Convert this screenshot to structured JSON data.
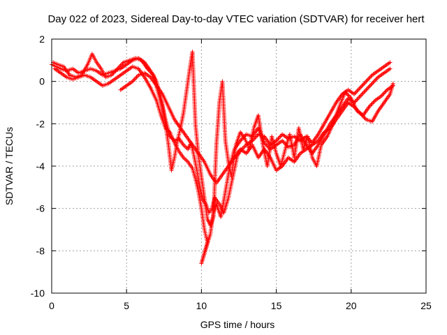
{
  "chart_data": {
    "type": "scatter",
    "title": "Day 022 of 2023, Sidereal Day-to-day VTEC variation (SDTVAR) for receiver hert",
    "xlabel": "GPS time / hours",
    "ylabel": "SDTVAR / TECUs",
    "xlim": [
      0,
      25
    ],
    "ylim": [
      -10,
      2
    ],
    "xticks": [
      0,
      5,
      10,
      15,
      20,
      25
    ],
    "yticks": [
      -10,
      -8,
      -6,
      -4,
      -2,
      0,
      2
    ],
    "xtick_labels": [
      "0",
      "5",
      "10",
      "15",
      "20",
      "25"
    ],
    "ytick_labels": [
      "-10",
      "-8",
      "-6",
      "-4",
      "-2",
      "0",
      "2"
    ],
    "grid": true,
    "marker": "+",
    "color": "#ff0000",
    "series": [
      {
        "points": [
          [
            0.0,
            0.8
          ],
          [
            0.3,
            0.7
          ],
          [
            0.6,
            0.6
          ],
          [
            1.0,
            0.5
          ],
          [
            1.4,
            0.6
          ],
          [
            1.8,
            0.4
          ],
          [
            2.2,
            0.5
          ],
          [
            2.6,
            0.6
          ],
          [
            3.0,
            0.5
          ],
          [
            3.4,
            0.3
          ],
          [
            3.8,
            0.4
          ],
          [
            4.2,
            0.5
          ],
          [
            4.6,
            0.6
          ],
          [
            5.0,
            0.8
          ],
          [
            5.4,
            1.0
          ],
          [
            5.8,
            1.1
          ],
          [
            6.2,
            0.9
          ],
          [
            6.6,
            0.5
          ],
          [
            7.0,
            0.0
          ],
          [
            7.3,
            -0.8
          ],
          [
            7.6,
            -1.8
          ],
          [
            7.9,
            -2.6
          ],
          [
            8.2,
            -2.8
          ],
          [
            8.5,
            -2.7
          ],
          [
            8.8,
            -3.0
          ],
          [
            9.1,
            -3.2
          ],
          [
            9.3,
            -2.9
          ],
          [
            9.5,
            -3.5
          ],
          [
            9.7,
            -4.2
          ],
          [
            9.9,
            -5.0
          ],
          [
            10.1,
            -5.6
          ],
          [
            10.3,
            -5.8
          ],
          [
            10.5,
            -6.2
          ],
          [
            10.7,
            -6.0
          ],
          [
            10.9,
            -5.5
          ],
          [
            11.2,
            -5.8
          ],
          [
            11.5,
            -6.2
          ],
          [
            11.8,
            -5.5
          ],
          [
            12.1,
            -4.5
          ],
          [
            12.4,
            -3.5
          ],
          [
            12.7,
            -3.2
          ],
          [
            13.0,
            -3.0
          ],
          [
            13.4,
            -2.8
          ],
          [
            13.8,
            -2.5
          ],
          [
            14.2,
            -2.6
          ],
          [
            14.6,
            -3.0
          ],
          [
            15.0,
            -2.8
          ],
          [
            15.4,
            -2.5
          ],
          [
            15.8,
            -2.7
          ],
          [
            16.2,
            -2.6
          ],
          [
            16.6,
            -2.8
          ],
          [
            17.0,
            -2.6
          ],
          [
            17.4,
            -2.9
          ],
          [
            17.8,
            -2.5
          ],
          [
            18.2,
            -2.0
          ],
          [
            18.6,
            -1.5
          ],
          [
            19.0,
            -1.0
          ],
          [
            19.4,
            -0.6
          ],
          [
            19.8,
            -0.4
          ],
          [
            20.2,
            -0.6
          ],
          [
            20.6,
            -0.3
          ],
          [
            21.0,
            0.0
          ],
          [
            21.4,
            0.3
          ],
          [
            21.8,
            0.5
          ],
          [
            22.2,
            0.7
          ],
          [
            22.6,
            0.9
          ]
        ]
      },
      {
        "points": [
          [
            0.1,
            0.9
          ],
          [
            0.4,
            0.8
          ],
          [
            0.8,
            0.7
          ],
          [
            1.2,
            0.3
          ],
          [
            1.6,
            0.2
          ],
          [
            2.0,
            0.3
          ],
          [
            2.4,
            0.8
          ],
          [
            2.7,
            1.3
          ],
          [
            3.0,
            0.9
          ],
          [
            3.3,
            0.6
          ],
          [
            3.6,
            0.2
          ],
          [
            4.0,
            0.3
          ],
          [
            4.4,
            0.6
          ],
          [
            4.8,
            0.9
          ],
          [
            5.2,
            1.0
          ],
          [
            5.6,
            1.1
          ],
          [
            6.0,
            1.0
          ],
          [
            6.4,
            0.6
          ],
          [
            6.8,
            0.3
          ],
          [
            7.1,
            -0.5
          ],
          [
            7.4,
            -1.2
          ],
          [
            7.6,
            -2.0
          ],
          [
            7.8,
            -3.0
          ],
          [
            8.0,
            -4.2
          ],
          [
            8.2,
            -3.6
          ],
          [
            8.4,
            -2.8
          ],
          [
            8.6,
            -2.2
          ],
          [
            8.8,
            -1.5
          ],
          [
            9.0,
            -0.5
          ],
          [
            9.2,
            0.5
          ],
          [
            9.4,
            1.4
          ],
          [
            9.6,
            -2.0
          ],
          [
            9.8,
            -3.5
          ],
          [
            10.0,
            -4.5
          ],
          [
            10.2,
            -5.5
          ],
          [
            10.4,
            -6.5
          ],
          [
            10.6,
            -6.8
          ],
          [
            10.8,
            -6.4
          ],
          [
            11.0,
            -3.0
          ],
          [
            11.2,
            -1.0
          ],
          [
            11.4,
            0.0
          ],
          [
            11.6,
            -2.8
          ],
          [
            11.8,
            -3.8
          ],
          [
            12.0,
            -4.5
          ],
          [
            12.3,
            -3.0
          ],
          [
            12.6,
            -2.4
          ],
          [
            12.9,
            -2.7
          ],
          [
            13.2,
            -3.2
          ],
          [
            13.5,
            -2.2
          ],
          [
            13.8,
            -1.6
          ],
          [
            14.1,
            -3.0
          ],
          [
            14.4,
            -4.0
          ],
          [
            14.7,
            -2.6
          ],
          [
            15.0,
            -3.4
          ],
          [
            15.3,
            -4.0
          ],
          [
            15.6,
            -3.2
          ],
          [
            15.9,
            -2.5
          ],
          [
            16.2,
            -3.6
          ],
          [
            16.5,
            -2.2
          ],
          [
            16.8,
            -3.2
          ],
          [
            17.1,
            -2.6
          ],
          [
            17.4,
            -3.6
          ],
          [
            17.7,
            -4.0
          ],
          [
            18.0,
            -3.0
          ],
          [
            18.4,
            -2.6
          ],
          [
            18.8,
            -2.0
          ],
          [
            19.2,
            -1.2
          ],
          [
            19.6,
            -0.5
          ],
          [
            20.0,
            -0.8
          ],
          [
            20.4,
            -1.4
          ],
          [
            20.8,
            -1.6
          ],
          [
            21.2,
            -1.2
          ],
          [
            21.6,
            -0.9
          ],
          [
            22.0,
            -0.7
          ],
          [
            22.4,
            -0.4
          ],
          [
            22.8,
            -0.2
          ]
        ]
      },
      {
        "points": [
          [
            0.2,
            0.6
          ],
          [
            0.6,
            0.4
          ],
          [
            1.0,
            0.2
          ],
          [
            1.4,
            0.1
          ],
          [
            1.8,
            0.2
          ],
          [
            2.2,
            0.3
          ],
          [
            2.6,
            0.2
          ],
          [
            3.0,
            0.0
          ],
          [
            3.4,
            -0.2
          ],
          [
            3.8,
            -0.1
          ],
          [
            4.2,
            0.1
          ],
          [
            4.6,
            0.3
          ],
          [
            5.0,
            0.5
          ],
          [
            5.4,
            0.7
          ],
          [
            5.8,
            0.6
          ],
          [
            6.2,
            0.2
          ],
          [
            6.6,
            -0.3
          ],
          [
            7.0,
            -0.9
          ],
          [
            7.3,
            -1.6
          ],
          [
            7.6,
            -2.2
          ],
          [
            7.9,
            -2.4
          ],
          [
            8.2,
            -2.9
          ],
          [
            8.5,
            -3.3
          ],
          [
            8.8,
            -3.6
          ],
          [
            9.1,
            -3.8
          ],
          [
            9.4,
            -4.1
          ],
          [
            9.6,
            -4.6
          ],
          [
            9.8,
            -5.2
          ],
          [
            10.0,
            -6.0
          ],
          [
            10.2,
            -7.0
          ],
          [
            10.4,
            -7.6
          ],
          [
            10.0,
            -8.6
          ],
          [
            10.6,
            -7.2
          ],
          [
            10.8,
            -6.2
          ],
          [
            11.0,
            -5.8
          ],
          [
            11.3,
            -6.4
          ],
          [
            11.6,
            -5.2
          ],
          [
            11.9,
            -4.0
          ],
          [
            12.2,
            -3.2
          ],
          [
            12.6,
            -2.8
          ],
          [
            13.0,
            -2.5
          ],
          [
            13.4,
            -2.6
          ],
          [
            13.8,
            -2.2
          ],
          [
            14.2,
            -2.9
          ],
          [
            14.6,
            -3.2
          ],
          [
            15.0,
            -3.0
          ],
          [
            15.4,
            -2.8
          ],
          [
            15.8,
            -3.1
          ],
          [
            16.2,
            -3.0
          ],
          [
            16.6,
            -2.5
          ],
          [
            17.0,
            -3.0
          ],
          [
            17.4,
            -3.4
          ],
          [
            17.8,
            -3.0
          ],
          [
            18.2,
            -2.5
          ],
          [
            18.6,
            -2.0
          ],
          [
            19.0,
            -1.6
          ],
          [
            19.4,
            -1.2
          ],
          [
            19.8,
            -0.8
          ],
          [
            20.2,
            -1.0
          ],
          [
            20.6,
            -0.7
          ],
          [
            21.0,
            -0.4
          ],
          [
            21.4,
            -0.1
          ],
          [
            21.8,
            0.2
          ],
          [
            22.2,
            0.4
          ],
          [
            22.6,
            0.6
          ]
        ]
      },
      {
        "points": [
          [
            4.6,
            -0.4
          ],
          [
            5.0,
            -0.2
          ],
          [
            5.4,
            0.0
          ],
          [
            5.8,
            0.3
          ],
          [
            6.2,
            0.4
          ],
          [
            6.6,
            0.2
          ],
          [
            7.0,
            -0.2
          ],
          [
            7.4,
            -0.6
          ],
          [
            7.8,
            -1.2
          ],
          [
            8.2,
            -1.8
          ],
          [
            8.6,
            -2.2
          ],
          [
            9.0,
            -2.6
          ],
          [
            9.4,
            -3.0
          ],
          [
            9.8,
            -3.4
          ],
          [
            10.2,
            -3.8
          ],
          [
            10.6,
            -4.4
          ],
          [
            11.0,
            -4.8
          ],
          [
            11.4,
            -4.4
          ],
          [
            11.8,
            -4.0
          ],
          [
            12.2,
            -3.6
          ],
          [
            12.6,
            -3.2
          ],
          [
            13.0,
            -3.4
          ],
          [
            13.4,
            -3.0
          ],
          [
            13.8,
            -3.6
          ],
          [
            14.2,
            -3.2
          ],
          [
            14.6,
            -3.6
          ],
          [
            15.0,
            -4.2
          ],
          [
            15.4,
            -4.0
          ],
          [
            15.8,
            -3.6
          ],
          [
            16.2,
            -3.8
          ],
          [
            16.6,
            -3.4
          ],
          [
            17.0,
            -3.2
          ],
          [
            17.4,
            -3.0
          ],
          [
            17.8,
            -2.8
          ],
          [
            18.2,
            -2.4
          ],
          [
            18.6,
            -2.2
          ],
          [
            19.0,
            -1.8
          ],
          [
            19.4,
            -1.4
          ],
          [
            19.8,
            -1.0
          ],
          [
            20.2,
            -1.2
          ],
          [
            20.6,
            -1.5
          ],
          [
            21.0,
            -1.8
          ],
          [
            21.4,
            -1.9
          ],
          [
            21.8,
            -1.4
          ],
          [
            22.2,
            -1.0
          ],
          [
            22.6,
            -0.6
          ],
          [
            22.8,
            -0.1
          ]
        ]
      }
    ]
  }
}
